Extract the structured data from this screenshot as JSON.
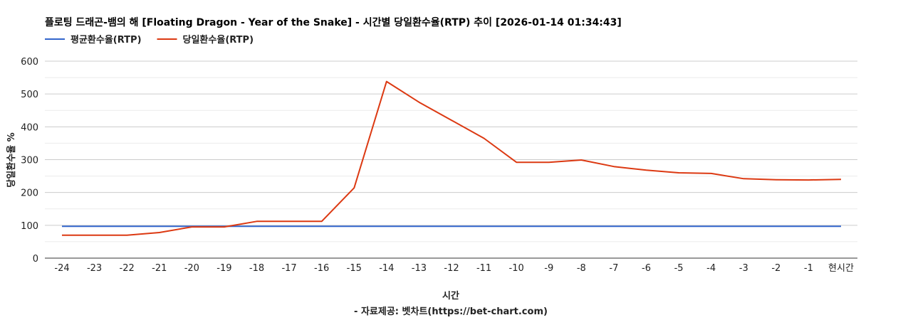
{
  "chart_data": {
    "type": "line",
    "title": "플로팅 드래곤-뱀의 해 [Floating Dragon - Year of the Snake] - 시간별 당일환수율(RTP) 추이 [2026-01-14 01:34:43]",
    "xlabel": "시간",
    "ylabel": "당일환수율 %",
    "credit": "- 자료제공: 벳차트(https://bet-chart.com)",
    "categories": [
      "-24",
      "-23",
      "-22",
      "-21",
      "-20",
      "-19",
      "-18",
      "-17",
      "-16",
      "-15",
      "-14",
      "-13",
      "-12",
      "-11",
      "-10",
      "-9",
      "-8",
      "-7",
      "-6",
      "-5",
      "-4",
      "-3",
      "-2",
      "-1",
      "현시간"
    ],
    "ylim": [
      0,
      600
    ],
    "yticks": [
      0,
      100,
      200,
      300,
      400,
      500,
      600
    ],
    "grid": true,
    "legend_position": "top-left",
    "series": [
      {
        "name": "평균환수율(RTP)",
        "color": "#3366cc",
        "values": [
          97,
          97,
          97,
          97,
          97,
          97,
          97,
          97,
          97,
          97,
          97,
          97,
          97,
          97,
          97,
          97,
          97,
          97,
          97,
          97,
          97,
          97,
          97,
          97,
          97
        ]
      },
      {
        "name": "당일환수율(RTP)",
        "color": "#dc3912",
        "values": [
          70,
          70,
          70,
          78,
          95,
          95,
          112,
          112,
          112,
          214,
          538,
          475,
          420,
          365,
          292,
          292,
          299,
          279,
          268,
          260,
          258,
          242,
          239,
          238,
          240
        ]
      }
    ]
  }
}
